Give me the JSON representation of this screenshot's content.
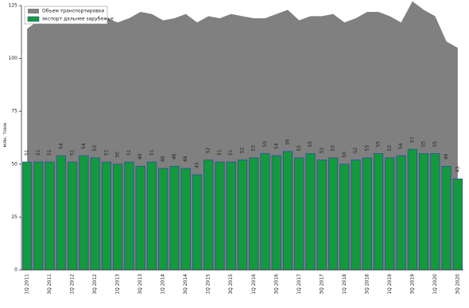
{
  "chart_data": {
    "type": "bar_area",
    "ylabel": "млн. тонн",
    "categories": [
      "1Q 2011",
      null,
      "3Q 2011",
      null,
      "1Q 2012",
      null,
      "3Q 2012",
      null,
      "1Q 2013",
      null,
      "3Q 2013",
      null,
      "1Q 2014",
      null,
      "3Q 2014",
      null,
      "1Q 2015",
      null,
      "3Q 2015",
      null,
      "1Q 2016",
      null,
      "3Q 2016",
      null,
      "1Q 2017",
      null,
      "3Q 2017",
      null,
      "1Q 2018",
      null,
      "3Q 2018",
      null,
      "1Q 2019",
      null,
      "3Q 2019",
      null,
      "1Q 2020",
      null,
      "3Q 2020"
    ],
    "series": [
      {
        "name": "Объем транспортировки",
        "kind": "area",
        "color": "#808080",
        "values": [
          114,
          118,
          119,
          120,
          117,
          119,
          120,
          119,
          117,
          119,
          122,
          121,
          118,
          119,
          121,
          117,
          120,
          119,
          121,
          120,
          119,
          119,
          121,
          123,
          118,
          120,
          120,
          121,
          117,
          119,
          122,
          122,
          120,
          117,
          127,
          123,
          120,
          108,
          105
        ]
      },
      {
        "name": "экспорт дальнее зарубежье",
        "kind": "bar",
        "color": "#139a3c",
        "edge": "#2a4fa0",
        "values": [
          51,
          51,
          51,
          54,
          51,
          54,
          53,
          51,
          50,
          51,
          49,
          51,
          48,
          49,
          48,
          45,
          52,
          51,
          51,
          52,
          53,
          55,
          54,
          56,
          53,
          55,
          52,
          53,
          50,
          52,
          53,
          55,
          53,
          54,
          57,
          55,
          55,
          49,
          43
        ]
      }
    ],
    "ylim": [
      0,
      125
    ],
    "yticks": [
      0,
      25,
      50,
      75,
      100,
      125
    ],
    "legend": "upper-left"
  }
}
